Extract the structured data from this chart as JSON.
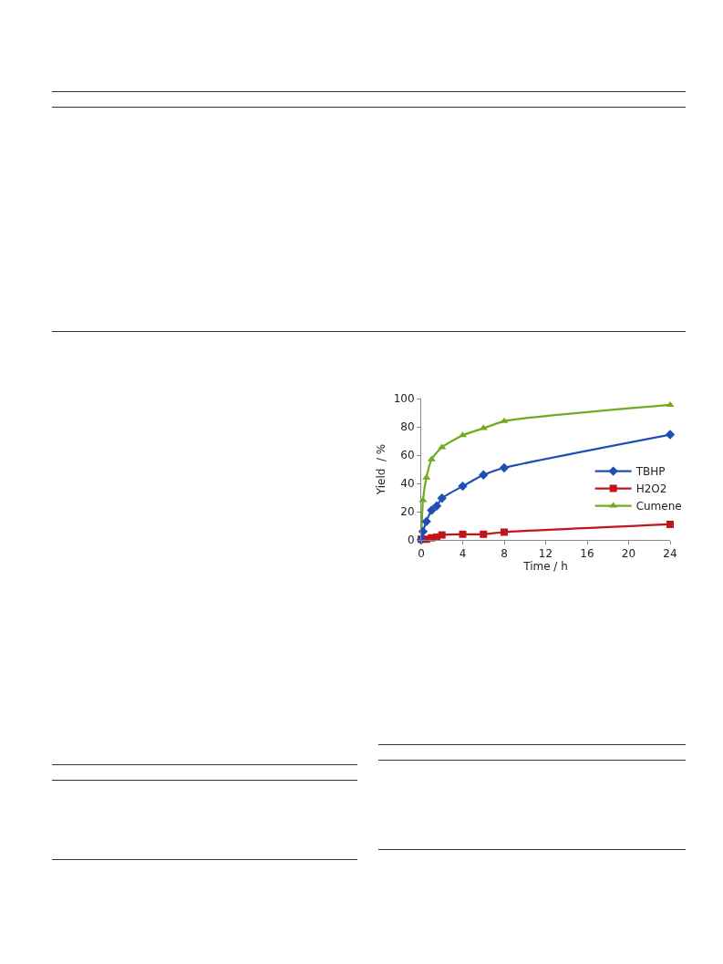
{
  "chart_data": {
    "type": "line",
    "xlabel": "Time / h",
    "ylabel": "Yield  / %",
    "xlim": [
      0,
      24
    ],
    "xticks": [
      0,
      4,
      8,
      12,
      16,
      20,
      24
    ],
    "ylim": [
      0,
      100
    ],
    "yticks": [
      0,
      20,
      40,
      60,
      80,
      100
    ],
    "grid": false,
    "legend": "right",
    "series": [
      {
        "name": "TBHP",
        "color": "#1f4fb4",
        "marker": "diamond",
        "x": [
          0,
          0.17,
          0.5,
          1,
          1.5,
          2,
          4,
          6,
          8,
          24
        ],
        "values": [
          0,
          6,
          13,
          21,
          24,
          29.5,
          38,
          46,
          51,
          74.5
        ]
      },
      {
        "name": "H2O2",
        "color": "#c0161b",
        "marker": "square",
        "x": [
          0,
          0.5,
          1,
          1.5,
          2,
          4,
          6,
          8,
          24
        ],
        "values": [
          0.5,
          0.5,
          1.5,
          2,
          3.5,
          4,
          4,
          5.5,
          11
        ]
      },
      {
        "name": "Cumene",
        "color": "#70ad1e",
        "marker": "triangle",
        "x": [
          0,
          0.17,
          0.5,
          1,
          2,
          4,
          6,
          8,
          24
        ],
        "values": [
          0,
          28,
          44,
          57,
          65.5,
          74,
          79,
          84,
          95.5
        ]
      }
    ]
  }
}
